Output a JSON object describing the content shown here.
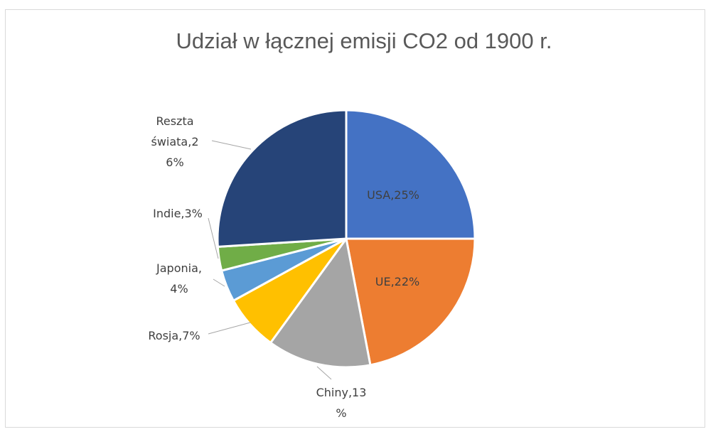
{
  "chart_data": {
    "type": "pie",
    "title": "Udział w łącznej emisji CO2 od 1900 r.",
    "start_angle_deg": 0,
    "direction": "clockwise",
    "slices": [
      {
        "label": "USA",
        "value": 25,
        "color": "#4472C4",
        "label_lines": [
          "USA,25%"
        ]
      },
      {
        "label": "UE",
        "value": 22,
        "color": "#ED7D31",
        "label_lines": [
          "UE,22%"
        ]
      },
      {
        "label": "Chiny",
        "value": 13,
        "color": "#A5A5A5",
        "label_lines": [
          "Chiny,13",
          "%"
        ]
      },
      {
        "label": "Rosja",
        "value": 7,
        "color": "#FFC000",
        "label_lines": [
          "Rosja,7%"
        ]
      },
      {
        "label": "Japonia",
        "value": 4,
        "color": "#5B9BD5",
        "label_lines": [
          "Japonia,",
          "4%"
        ]
      },
      {
        "label": "Indie",
        "value": 3,
        "color": "#70AD47",
        "label_lines": [
          "Indie,3%"
        ]
      },
      {
        "label": "Reszta świata",
        "value": 26,
        "color": "#264478",
        "label_lines": [
          "Reszta",
          "świata,2",
          "6%"
        ]
      }
    ]
  }
}
